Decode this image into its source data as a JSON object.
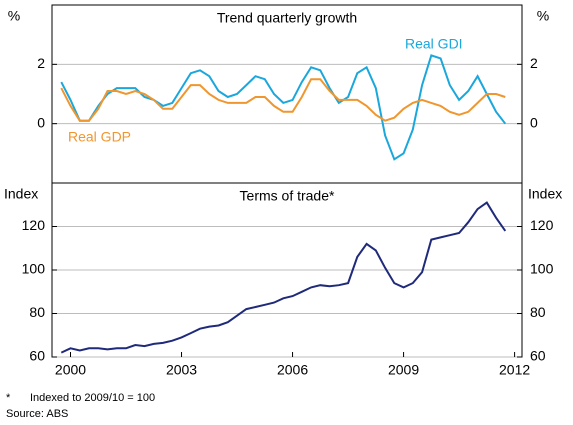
{
  "chart_data": [
    {
      "type": "line",
      "title": "Trend quarterly growth",
      "ylabel": "%",
      "y2label": "%",
      "x": [
        1999.75,
        2000,
        2000.25,
        2000.5,
        2000.75,
        2001,
        2001.25,
        2001.5,
        2001.75,
        2002,
        2002.25,
        2002.5,
        2002.75,
        2003,
        2003.25,
        2003.5,
        2003.75,
        2004,
        2004.25,
        2004.5,
        2004.75,
        2005,
        2005.25,
        2005.5,
        2005.75,
        2006,
        2006.25,
        2006.5,
        2006.75,
        2007,
        2007.25,
        2007.5,
        2007.75,
        2008,
        2008.25,
        2008.5,
        2008.75,
        2009,
        2009.25,
        2009.5,
        2009.75,
        2010,
        2010.25,
        2010.5,
        2010.75,
        2011,
        2011.25,
        2011.5,
        2011.75
      ],
      "series": [
        {
          "name": "Real GDI",
          "color": "#1aa7dc",
          "values": [
            1.4,
            0.8,
            0.1,
            0.1,
            0.6,
            1.0,
            1.2,
            1.2,
            1.2,
            0.9,
            0.8,
            0.6,
            0.7,
            1.2,
            1.7,
            1.8,
            1.6,
            1.1,
            0.9,
            1.0,
            1.3,
            1.6,
            1.5,
            1.0,
            0.7,
            0.8,
            1.4,
            1.9,
            1.8,
            1.2,
            0.7,
            0.9,
            1.7,
            1.9,
            1.2,
            -0.4,
            -1.2,
            -1.0,
            -0.2,
            1.3,
            2.3,
            2.2,
            1.3,
            0.8,
            1.1,
            1.6,
            1.0,
            0.4,
            0.0
          ]
        },
        {
          "name": "Real GDP",
          "color": "#f0962e",
          "values": [
            1.2,
            0.6,
            0.1,
            0.1,
            0.5,
            1.1,
            1.1,
            1.0,
            1.1,
            1.0,
            0.8,
            0.5,
            0.5,
            0.9,
            1.3,
            1.3,
            1.0,
            0.8,
            0.7,
            0.7,
            0.7,
            0.9,
            0.9,
            0.6,
            0.4,
            0.4,
            0.9,
            1.5,
            1.5,
            1.1,
            0.8,
            0.8,
            0.8,
            0.6,
            0.3,
            0.1,
            0.2,
            0.5,
            0.7,
            0.8,
            0.7,
            0.6,
            0.4,
            0.3,
            0.4,
            0.7,
            1.0,
            1.0,
            0.9
          ]
        }
      ],
      "xlim": [
        1999.5,
        2012.2
      ],
      "ylim": [
        -2,
        4
      ],
      "yticks": [
        0,
        2
      ],
      "y2lim": [
        -2,
        4
      ],
      "y2ticks": [
        0,
        2
      ],
      "grid": true
    },
    {
      "type": "line",
      "title": "Terms of trade*",
      "ylabel": "Index",
      "y2label": "Index",
      "x": [
        1999.75,
        2000,
        2000.25,
        2000.5,
        2000.75,
        2001,
        2001.25,
        2001.5,
        2001.75,
        2002,
        2002.25,
        2002.5,
        2002.75,
        2003,
        2003.25,
        2003.5,
        2003.75,
        2004,
        2004.25,
        2004.5,
        2004.75,
        2005,
        2005.25,
        2005.5,
        2005.75,
        2006,
        2006.25,
        2006.5,
        2006.75,
        2007,
        2007.25,
        2007.5,
        2007.75,
        2008,
        2008.25,
        2008.5,
        2008.75,
        2009,
        2009.25,
        2009.5,
        2009.75,
        2010,
        2010.25,
        2010.5,
        2010.75,
        2011,
        2011.25,
        2011.5,
        2011.75
      ],
      "series": [
        {
          "name": "Terms of trade",
          "color": "#1f2a7a",
          "values": [
            62,
            64,
            63,
            64,
            64,
            63.5,
            64,
            64,
            65.5,
            65,
            66,
            66.5,
            67.5,
            69,
            71,
            73,
            74,
            74.5,
            76,
            79,
            82,
            83,
            84,
            85,
            87,
            88,
            90,
            92,
            93,
            92.5,
            93,
            94,
            106,
            112,
            109,
            101,
            94,
            92,
            94,
            99,
            114,
            115,
            116,
            117,
            122,
            128,
            131,
            124,
            118
          ]
        }
      ],
      "xlim": [
        1999.5,
        2012.2
      ],
      "xticks": [
        2000,
        2003,
        2006,
        2009,
        2012
      ],
      "ylim": [
        60,
        140
      ],
      "yticks": [
        60,
        80,
        100,
        120
      ],
      "y2lim": [
        60,
        140
      ],
      "y2ticks": [
        60,
        80,
        100,
        120
      ],
      "grid": true
    }
  ],
  "footnote": {
    "marker": "*",
    "text": "Indexed to 2009/10 = 100"
  },
  "source": "Source: ABS"
}
